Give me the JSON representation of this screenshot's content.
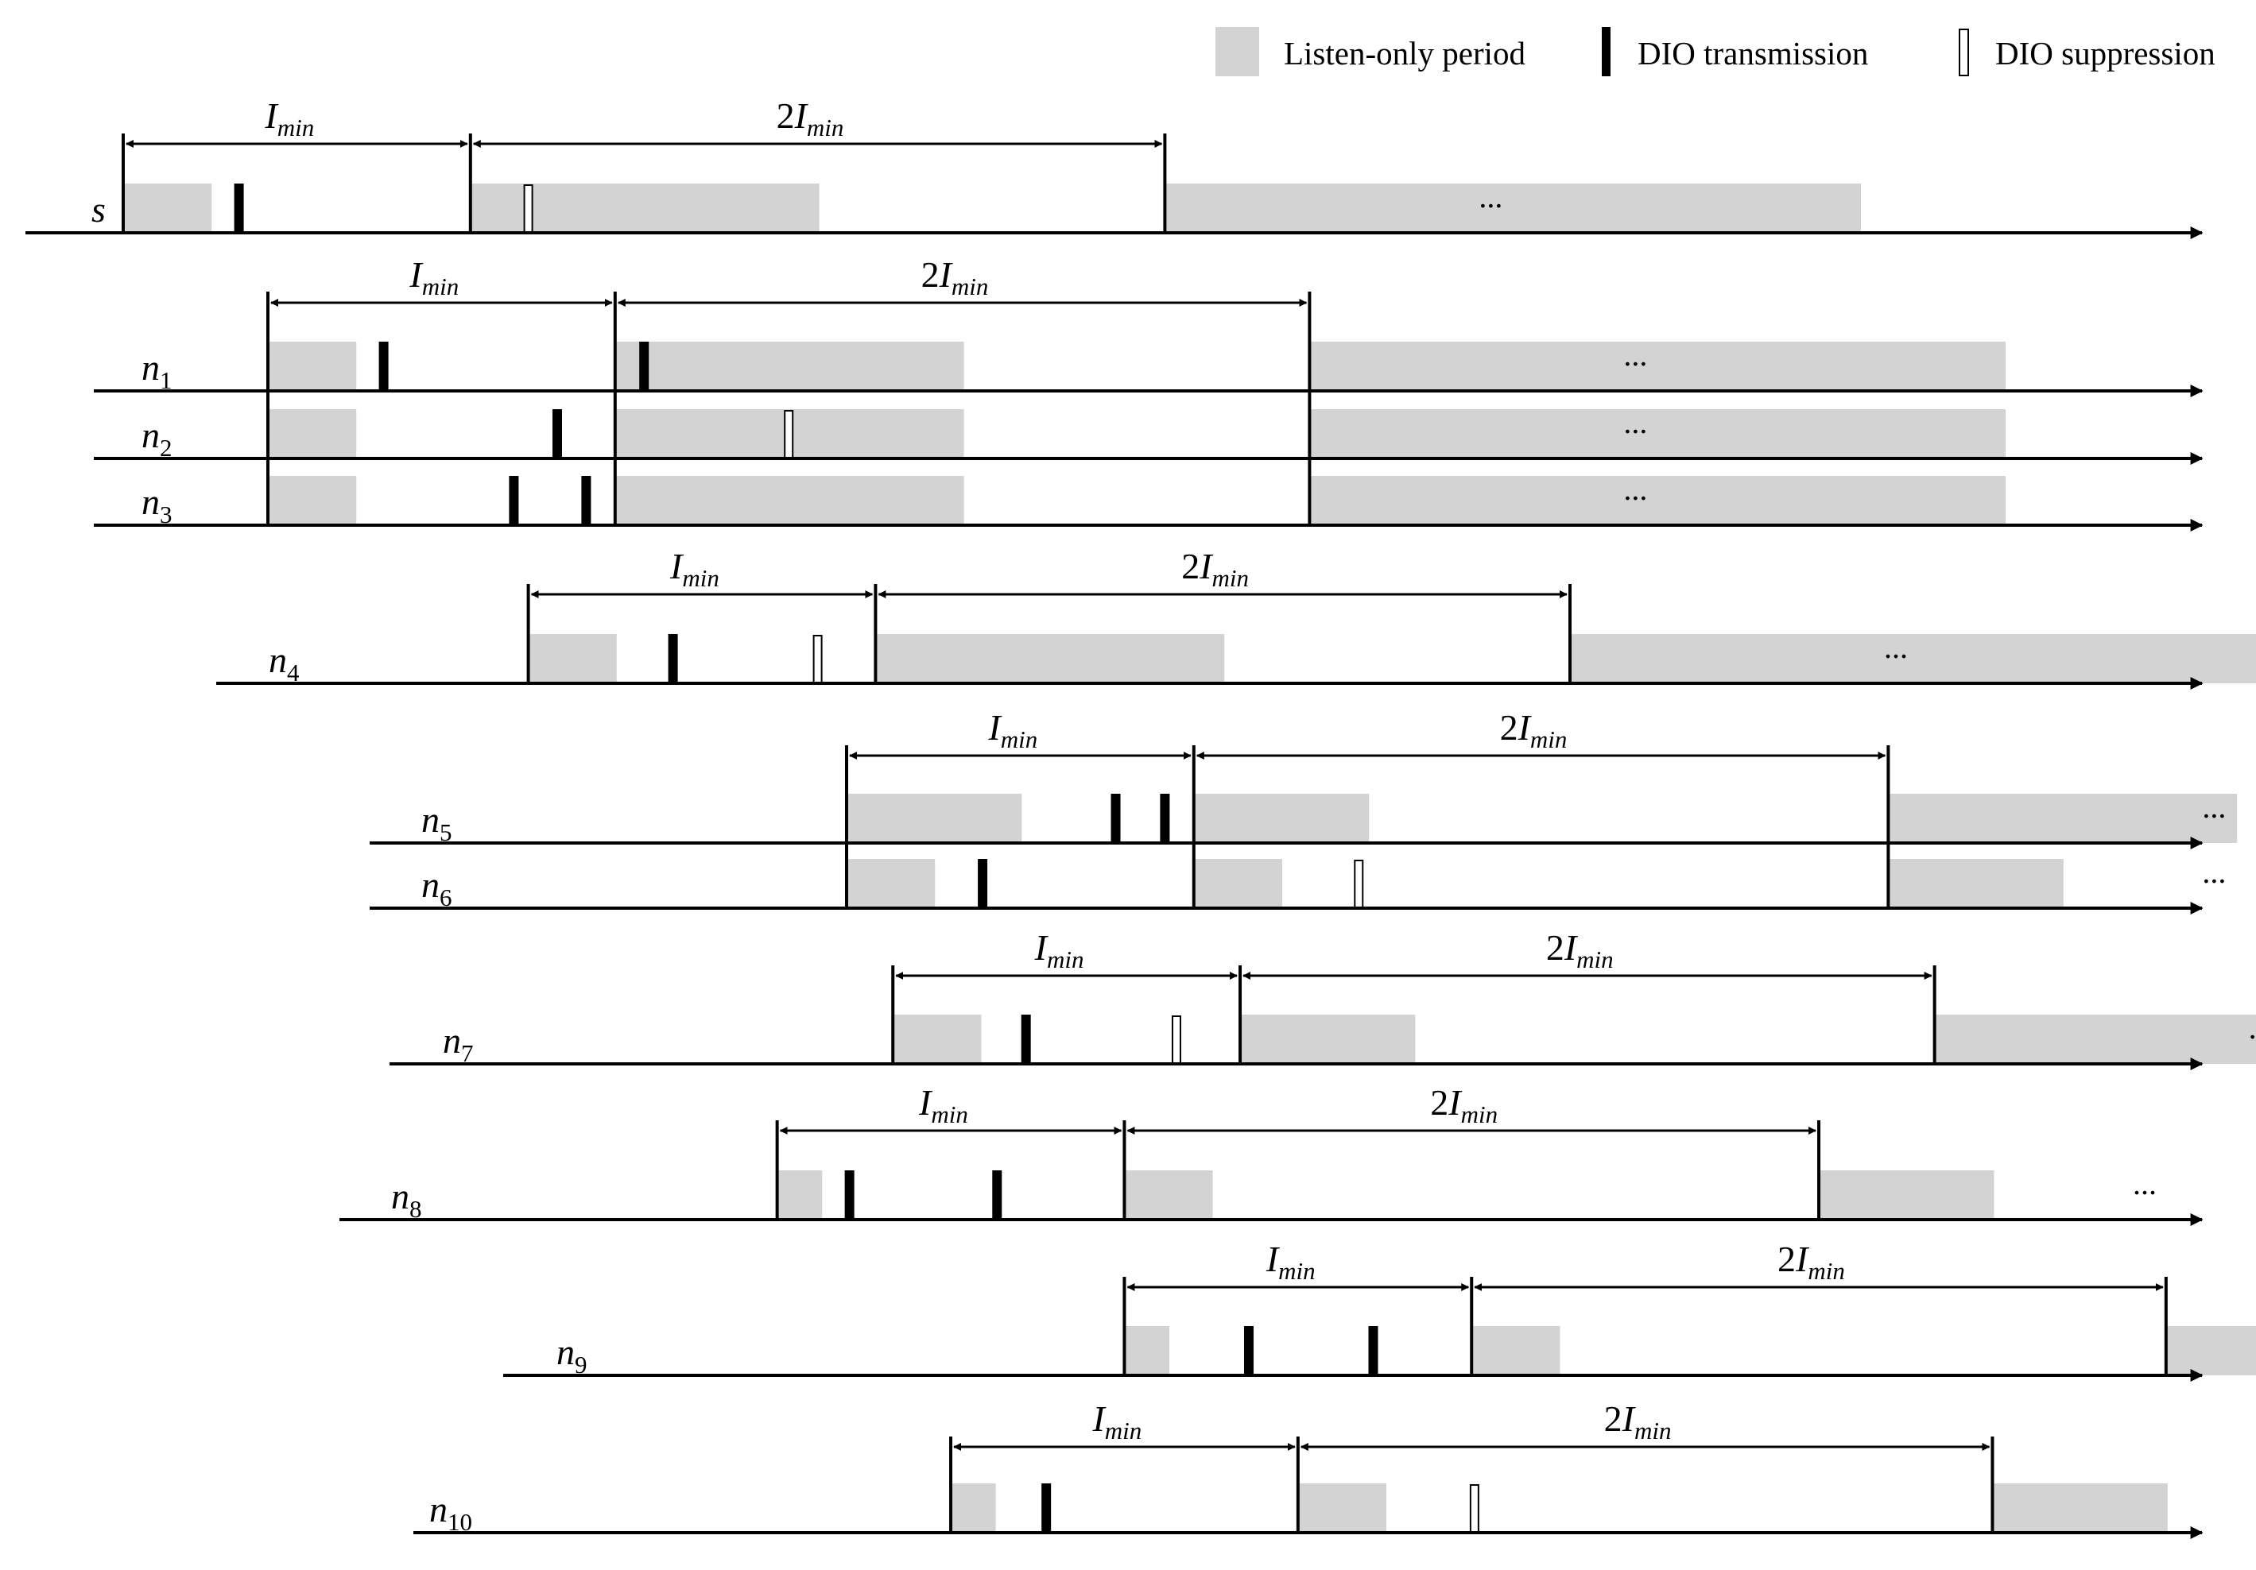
{
  "legend": {
    "listen_label": "Listen-only period",
    "transmission_label": "DIO transmission",
    "suppression_label": "DIO suppression"
  },
  "labels": {
    "interval_short": "I",
    "interval_long_prefix": "2I",
    "interval_subscript": "min",
    "continuation": "..."
  },
  "colors": {
    "listen": "#d3d3d3",
    "ink": "#000000",
    "background": "#ffffff"
  },
  "timeline_units": "ms",
  "nodes": [
    {
      "name": "s",
      "sub": "",
      "t0": 0,
      "listen": [
        3,
        12,
        24
      ],
      "tx": [
        4
      ],
      "sup": [
        14
      ]
    },
    {
      "name": "n",
      "sub": "1",
      "t0": 5,
      "listen": [
        3,
        12,
        24
      ],
      "tx": [
        4,
        13
      ],
      "sup": []
    },
    {
      "name": "n",
      "sub": "2",
      "t0": 5,
      "listen": [
        3,
        12,
        24
      ],
      "tx": [
        10
      ],
      "sup": [
        18
      ]
    },
    {
      "name": "n",
      "sub": "3",
      "t0": 5,
      "listen": [
        3,
        12,
        24
      ],
      "tx": [
        8.5,
        11
      ],
      "sup": []
    },
    {
      "name": "n",
      "sub": "4",
      "t0": 14,
      "listen": [
        3,
        12,
        24
      ],
      "tx": [
        5
      ],
      "sup": [
        10
      ]
    },
    {
      "name": "n",
      "sub": "5",
      "t0": 25,
      "listen": [
        6,
        6,
        12
      ],
      "tx": [
        9.3,
        11
      ],
      "sup": []
    },
    {
      "name": "n",
      "sub": "6",
      "t0": 25,
      "listen": [
        3,
        3,
        6
      ],
      "tx": [
        4.7
      ],
      "sup": [
        17.7
      ]
    },
    {
      "name": "n",
      "sub": "7",
      "t0": 26.6,
      "listen": [
        3,
        6,
        12
      ],
      "tx": [
        4.6
      ],
      "sup": [
        9.8
      ]
    },
    {
      "name": "n",
      "sub": "8",
      "t0": 22.6,
      "listen": [
        1.5,
        3,
        6
      ],
      "tx": [
        2.5
      ],
      "sup": [],
      "tx2": [
        7.6
      ]
    },
    {
      "name": "n",
      "sub": "9",
      "t0": 34.6,
      "listen": [
        1.5,
        3,
        6
      ],
      "tx": [
        4.3,
        8.6
      ],
      "sup": []
    },
    {
      "name": "n",
      "sub": "10",
      "t0": 28.6,
      "listen": [
        1.5,
        3,
        6
      ],
      "tx": [
        3.3
      ],
      "sup": [
        18.1
      ]
    }
  ]
}
